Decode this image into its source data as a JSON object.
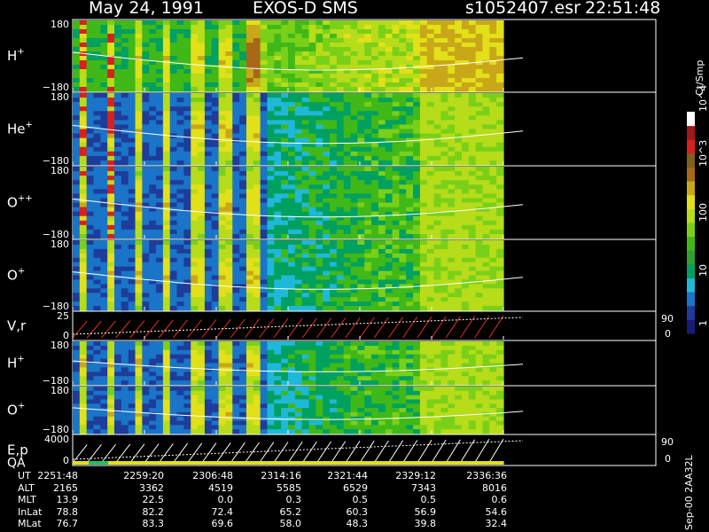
{
  "header": {
    "date": "May 24, 1991",
    "instrument": "EXOS-D SMS",
    "file": "s1052407.esr",
    "time": "22:51:48"
  },
  "colorbar": {
    "title": "Ct/Smp",
    "tick_labels": [
      "1",
      "10",
      "100",
      "10^3",
      "10^4"
    ]
  },
  "footer_tag": "Sep-00 2AA32L",
  "chart_data": {
    "type": "heatmap",
    "panels": [
      {
        "label": "H",
        "superscript": "+",
        "ytop": "180",
        "ybottom": "−180",
        "kind": "spectrogram"
      },
      {
        "label": "He",
        "superscript": "+",
        "ytop": "180",
        "ybottom": "−180",
        "kind": "spectrogram"
      },
      {
        "label": "O",
        "superscript": "++",
        "ytop": "180",
        "ybottom": "−180",
        "kind": "spectrogram"
      },
      {
        "label": "O",
        "superscript": "+",
        "ytop": "180",
        "ybottom": "−180",
        "kind": "spectrogram"
      },
      {
        "label": "V,r",
        "superscript": "",
        "ytop": "25",
        "ybottom": "0",
        "right_top": "90",
        "right_bottom": "0",
        "kind": "line"
      },
      {
        "label": "H",
        "superscript": "+",
        "ytop": "180",
        "ybottom": "−180",
        "kind": "spectrogram"
      },
      {
        "label": "O",
        "superscript": "+",
        "ytop": "180",
        "ybottom": "−180",
        "kind": "spectrogram"
      },
      {
        "label": "E,p",
        "superscript": "",
        "label2": "QA",
        "ytop": "4000",
        "ybottom": "0",
        "right_top": "90",
        "right_bottom": "0",
        "kind": "line"
      }
    ],
    "ephemeris": {
      "rows": [
        "UT",
        "ALT",
        "MLT",
        "InLat",
        "MLat"
      ],
      "columns": [
        [
          "2251:48",
          "2165",
          "13.9",
          "78.8",
          "76.7"
        ],
        [
          "2259:20",
          "3362",
          "22.5",
          "82.2",
          "83.3"
        ],
        [
          "2306:48",
          "4519",
          "0.0",
          "72.4",
          "69.6"
        ],
        [
          "2314:16",
          "5585",
          "0.3",
          "65.2",
          "58.0"
        ],
        [
          "2321:44",
          "6529",
          "0.5",
          "60.3",
          "48.3"
        ],
        [
          "2329:12",
          "7343",
          "0.5",
          "56.9",
          "39.8"
        ],
        [
          "2336:36",
          "8016",
          "0.6",
          "54.6",
          "32.4"
        ]
      ]
    }
  }
}
